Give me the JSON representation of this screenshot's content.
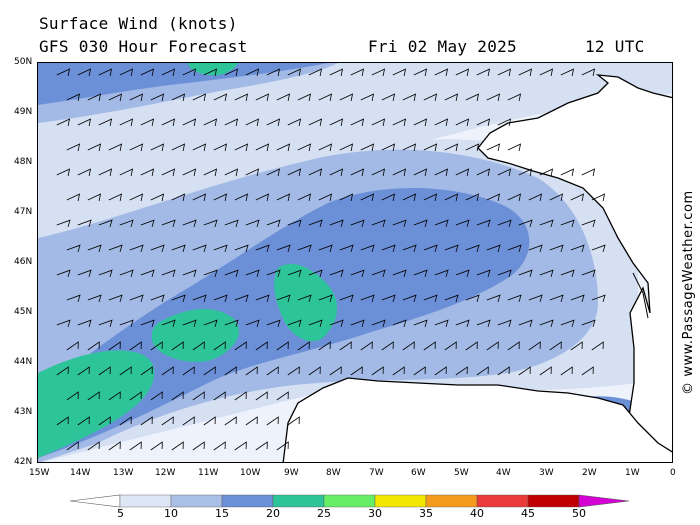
{
  "header": {
    "title": "Surface Wind (knots)",
    "subtitle": "GFS 030 Hour Forecast",
    "date": "Fri 02 May 2025",
    "time": "12 UTC"
  },
  "credit": "© www.PassageWeather.com",
  "axes": {
    "lat_labels": [
      "50N",
      "49N",
      "48N",
      "47N",
      "46N",
      "45N",
      "44N",
      "43N",
      "42N"
    ],
    "lon_labels": [
      "15W",
      "14W",
      "13W",
      "12W",
      "11W",
      "10W",
      "9W",
      "8W",
      "7W",
      "6W",
      "5W",
      "4W",
      "3W",
      "2W",
      "1W",
      "0"
    ]
  },
  "colorbar": {
    "labels": [
      "5",
      "10",
      "15",
      "20",
      "25",
      "30",
      "35",
      "40",
      "45",
      "50"
    ],
    "colors": [
      "#ffffff",
      "#dde6f5",
      "#a9bfe6",
      "#6b90d8",
      "#2ec49a",
      "#66ee66",
      "#f2e600",
      "#f59a1c",
      "#ea3a3a",
      "#c00000",
      "#d400d4"
    ]
  },
  "map_colors": {
    "calm": "#eef2fa",
    "band_5_10": "#d6e0f3",
    "band_10_15": "#a3bae6",
    "band_15_20": "#6b90d8",
    "band_20_25": "#2ec49a",
    "land": "#ffffff",
    "coast": "#000000",
    "barb": "#000000"
  }
}
